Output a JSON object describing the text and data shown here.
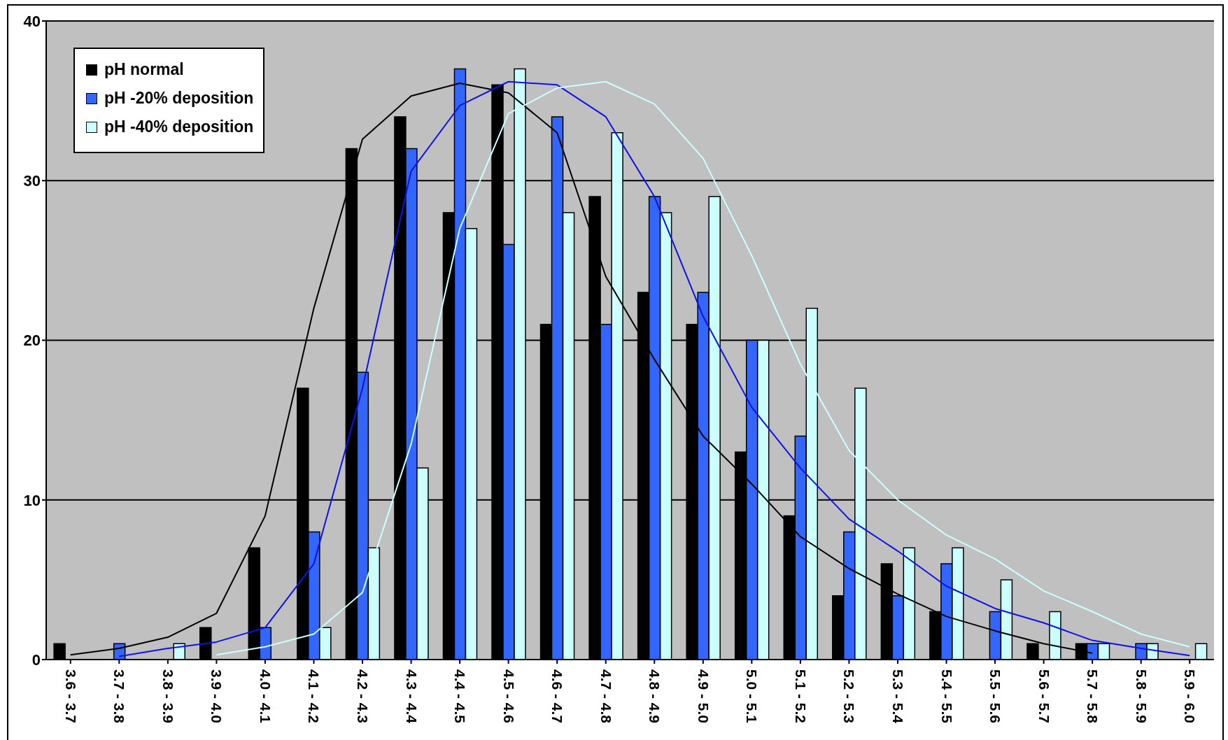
{
  "chart_data": {
    "type": "bar",
    "categories": [
      "3.6 - 3.7",
      "3.7 - 3.8",
      "3.8 - 3.9",
      "3.9 - 4.0",
      "4.0 - 4.1",
      "4.1 - 4.2",
      "4.2 - 4.3",
      "4.3 - 4.4",
      "4.4 - 4.5",
      "4.5 - 4.6",
      "4.6 - 4.7",
      "4.7 - 4.8",
      "4.8 - 4.9",
      "4.9 - 5.0",
      "5.0 - 5.1",
      "5.1 - 5.2",
      "5.2 - 5.3",
      "5.3 - 5.4",
      "5.4 - 5.5",
      "5.5 - 5.6",
      "5.6 - 5.7",
      "5.7 - 5.8",
      "5.8 - 5.9",
      "5.9 - 6.0"
    ],
    "series": [
      {
        "name": "pH normal",
        "color": "#000000",
        "values": [
          1,
          0,
          0,
          2,
          7,
          17,
          32,
          34,
          28,
          36,
          21,
          29,
          23,
          21,
          13,
          9,
          4,
          6,
          3,
          0,
          1,
          1,
          0,
          0
        ]
      },
      {
        "name": "pH -20% deposition",
        "color": "#3366ff",
        "values": [
          0,
          1,
          0,
          0,
          2,
          8,
          18,
          32,
          37,
          26,
          34,
          21,
          29,
          23,
          20,
          14,
          8,
          4,
          6,
          3,
          0,
          1,
          1,
          0
        ]
      },
      {
        "name": "pH -40% deposition",
        "color": "#ccffff",
        "values": [
          0,
          0,
          1,
          0,
          0,
          2,
          7,
          12,
          27,
          37,
          28,
          33,
          28,
          29,
          20,
          22,
          17,
          7,
          7,
          5,
          3,
          1,
          1,
          1
        ]
      },
      {
        "type": "line",
        "color": "#000000",
        "values": [
          0.3,
          0.7,
          1.4,
          2.9,
          9,
          22,
          32.6,
          35.3,
          36.1,
          35.5,
          33,
          24,
          18.8,
          14,
          11,
          7.7,
          5.7,
          4.1,
          2.7,
          1.8,
          1,
          0.4,
          null,
          null
        ]
      },
      {
        "type": "line",
        "color": "#1010e8",
        "values": [
          null,
          0.2,
          0.7,
          1.1,
          2,
          6,
          17,
          30.6,
          34.7,
          36.2,
          36,
          34,
          29,
          21.5,
          15.8,
          12,
          8.8,
          6.8,
          4.6,
          3.2,
          2.3,
          1.2,
          0.7,
          0.25
        ]
      },
      {
        "type": "line",
        "color": "#ccffff",
        "values": [
          null,
          null,
          null,
          0.3,
          0.8,
          1.6,
          4.2,
          13.5,
          27,
          34.2,
          35.8,
          36.2,
          34.8,
          31.4,
          25.3,
          18.5,
          13.1,
          10,
          7.8,
          6.3,
          4.3,
          3,
          1.6,
          0.8
        ]
      }
    ],
    "ylim": [
      0,
      40
    ],
    "yticks": [
      0,
      10,
      20,
      30,
      40
    ],
    "grid": "y",
    "legend": "top left",
    "marker": "none"
  }
}
